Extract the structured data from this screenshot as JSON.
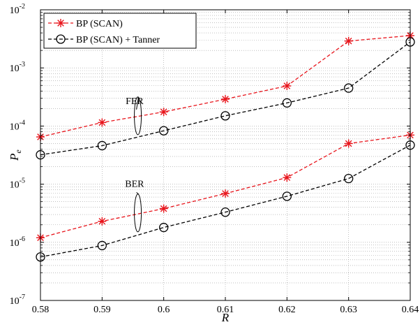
{
  "chart_data": {
    "type": "line",
    "xlabel": "R",
    "ylabel_base": "P",
    "ylabel_sub": "e",
    "x": [
      0.58,
      0.59,
      0.6,
      0.61,
      0.62,
      0.63,
      0.64
    ],
    "xlim": [
      0.58,
      0.64
    ],
    "ylim": [
      1e-07,
      0.01
    ],
    "yscale": "log",
    "x_ticks": [
      "0.58",
      "0.59",
      "0.6",
      "0.61",
      "0.62",
      "0.63",
      "0.64"
    ],
    "y_ticks": [
      {
        "base": "10",
        "exp": "-7"
      },
      {
        "base": "10",
        "exp": "-6"
      },
      {
        "base": "10",
        "exp": "-5"
      },
      {
        "base": "10",
        "exp": "-4"
      },
      {
        "base": "10",
        "exp": "-3"
      },
      {
        "base": "10",
        "exp": "-2"
      }
    ],
    "grid": true,
    "legend_position": "top-left",
    "legend": [
      {
        "label": "BP (SCAN)",
        "color": "#e8141b",
        "marker": "asterisk"
      },
      {
        "label": "BP (SCAN) + Tanner",
        "color": "#000000",
        "marker": "circle"
      }
    ],
    "series": [
      {
        "group": "FER",
        "legend_index": 0,
        "color": "#e8141b",
        "marker": "asterisk",
        "values": [
          6.5e-05,
          0.000115,
          0.000175,
          0.00029,
          0.00049,
          0.0029,
          0.0036
        ]
      },
      {
        "group": "FER",
        "legend_index": 1,
        "color": "#000000",
        "marker": "circle",
        "values": [
          3.2e-05,
          4.6e-05,
          8.3e-05,
          0.00015,
          0.00025,
          0.00045,
          0.0028
        ]
      },
      {
        "group": "BER",
        "legend_index": 0,
        "color": "#e8141b",
        "marker": "asterisk",
        "values": [
          1.2e-06,
          2.3e-06,
          3.8e-06,
          6.9e-06,
          1.3e-05,
          5e-05,
          7e-05
        ]
      },
      {
        "group": "BER",
        "legend_index": 1,
        "color": "#000000",
        "marker": "circle",
        "values": [
          5.6e-07,
          8.8e-07,
          1.8e-06,
          3.3e-06,
          6.2e-06,
          1.25e-05,
          4.7e-05
        ]
      }
    ],
    "annotations": [
      {
        "text": "FER",
        "x": 0.5955,
        "y": 0.00024
      },
      {
        "text": "BER",
        "x": 0.5955,
        "y": 9e-06
      }
    ]
  }
}
